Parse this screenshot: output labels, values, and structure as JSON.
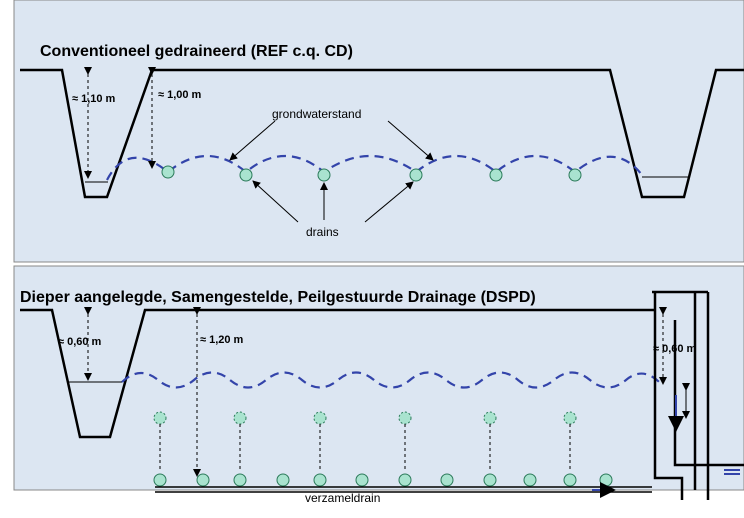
{
  "panels": [
    {
      "title": "Conventioneel gedraineerd (REF c.q. CD)",
      "labels": [
        "≈ 1,10 m",
        "≈ 1,00 m",
        "grondwaterstand",
        "drains"
      ]
    },
    {
      "title": "Dieper aangelegde, Samengestelde, Peilgestuurde Drainage (DSPD)",
      "labels": [
        "≈ 0,60 m",
        "≈ 1,20 m",
        "≈ 0,60 m",
        "verzameldrain"
      ]
    }
  ]
}
